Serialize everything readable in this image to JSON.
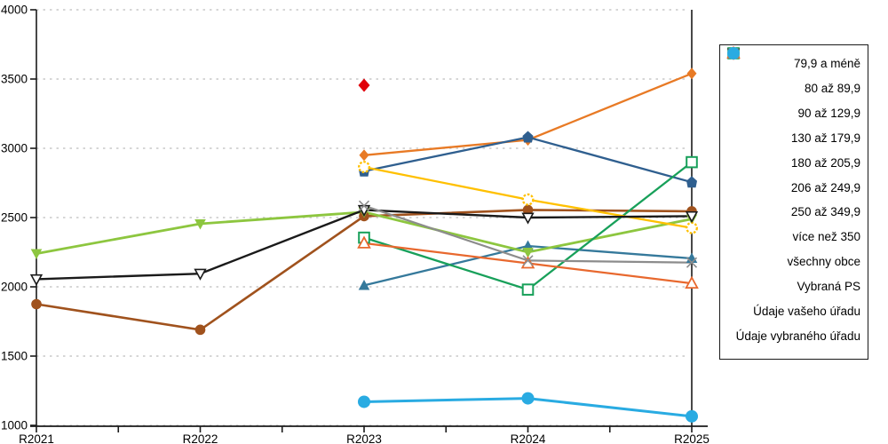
{
  "chart_data": {
    "type": "line",
    "title": "",
    "xlabel": "",
    "ylabel": "",
    "x_categories": [
      "R2021",
      "R2022",
      "R2023",
      "R2024",
      "R2025"
    ],
    "y_ticks": [
      1000,
      1500,
      2000,
      2500,
      3000,
      3500,
      4000
    ],
    "ylim": [
      1000,
      4000
    ],
    "grid": "horizontal-dashed",
    "highlight_column": "R2025",
    "legend_position": "right",
    "series": [
      {
        "name": "79,9 a méně",
        "color": "#E87A25",
        "marker": "diamond",
        "line": true,
        "width": 2.3,
        "values": [
          null,
          null,
          2950,
          3060,
          3540
        ]
      },
      {
        "name": "80 až 89,9",
        "color": "#A0521D",
        "marker": "circle",
        "line": true,
        "width": 2.6,
        "values": [
          1875,
          1690,
          2510,
          2555,
          2545
        ]
      },
      {
        "name": "90 až 129,9",
        "color": "#35799B",
        "marker": "triangle-up",
        "line": true,
        "width": 2.3,
        "values": [
          null,
          null,
          2010,
          2295,
          2205
        ]
      },
      {
        "name": "130 až 179,9",
        "color": "#2F5F8F",
        "marker": "pentagon",
        "line": true,
        "width": 2.3,
        "values": [
          null,
          null,
          2835,
          3080,
          2755
        ]
      },
      {
        "name": "180 až 205,9",
        "color": "#8DC63F",
        "marker": "triangle-down",
        "line": true,
        "width": 2.8,
        "values": [
          2240,
          2455,
          2540,
          2250,
          2490
        ]
      },
      {
        "name": "206 až 249,9",
        "color": "#18A05A",
        "marker": "square-open",
        "line": true,
        "width": 2.3,
        "values": [
          null,
          null,
          2355,
          1980,
          2900
        ]
      },
      {
        "name": "250 až 349,9",
        "color": "#FFC000",
        "marker": "circle-open-dashed",
        "line": true,
        "width": 2.3,
        "values": [
          null,
          null,
          2865,
          2630,
          2425
        ]
      },
      {
        "name": "více než 350",
        "color": "#E8682E",
        "marker": "triangle-up-open",
        "line": true,
        "width": 2.2,
        "values": [
          null,
          null,
          2315,
          2170,
          2025
        ]
      },
      {
        "name": "všechny obce",
        "color": "#1A1A1A",
        "marker": "triangle-down-open",
        "line": true,
        "width": 2.4,
        "values": [
          2055,
          2095,
          2555,
          2500,
          2510
        ]
      },
      {
        "name": "Vybraná PS",
        "color": "#8C8C8C",
        "marker": "x",
        "line": true,
        "width": 2.2,
        "values": [
          null,
          null,
          2585,
          2190,
          2175
        ]
      },
      {
        "name": "Údaje vašeho úřadu",
        "color": "#E00009",
        "marker": "diamond-large",
        "line": false,
        "width": 0,
        "values": [
          null,
          null,
          3455,
          null,
          null
        ]
      },
      {
        "name": "Údaje vybraného úřadu",
        "color": "#29ABE2",
        "marker": "circle-large",
        "line": true,
        "width": 3,
        "values": [
          null,
          null,
          1170,
          1195,
          1065
        ]
      }
    ],
    "axis_color": "#1a1a1a",
    "gridline_color": "#c9c9c9"
  }
}
